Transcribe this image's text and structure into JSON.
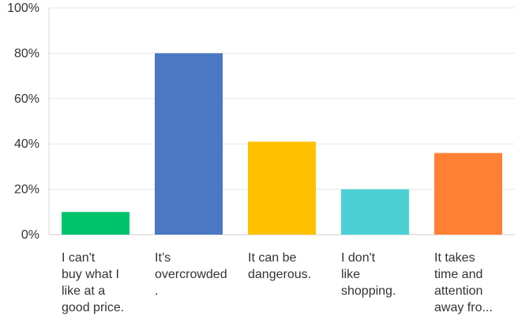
{
  "chart_data": {
    "type": "bar",
    "categories": [
      "I can't buy what I like at a good price.",
      "It’s overcrowded.",
      "It can be dangerous.",
      "I don't like shopping.",
      "It takes time and attention away fro..."
    ],
    "category_lines": [
      [
        "I can't",
        "buy what I",
        "like at a",
        "good price."
      ],
      [
        "It’s",
        "overcrowded",
        "."
      ],
      [
        "It can be",
        "dangerous."
      ],
      [
        "I don't",
        "like",
        "shopping."
      ],
      [
        "It takes",
        "time and",
        "attention",
        "away fro..."
      ]
    ],
    "values": [
      0.1,
      0.8,
      0.41,
      0.2,
      0.36
    ],
    "colors": [
      "#00c46b",
      "#4a78c2",
      "#ffc000",
      "#4dd0d3",
      "#ff8033"
    ],
    "yticks": [
      "0%",
      "20%",
      "40%",
      "60%",
      "80%",
      "100%"
    ],
    "ylim": [
      0,
      1
    ],
    "grid": true,
    "title": "",
    "xlabel": "",
    "ylabel": ""
  }
}
